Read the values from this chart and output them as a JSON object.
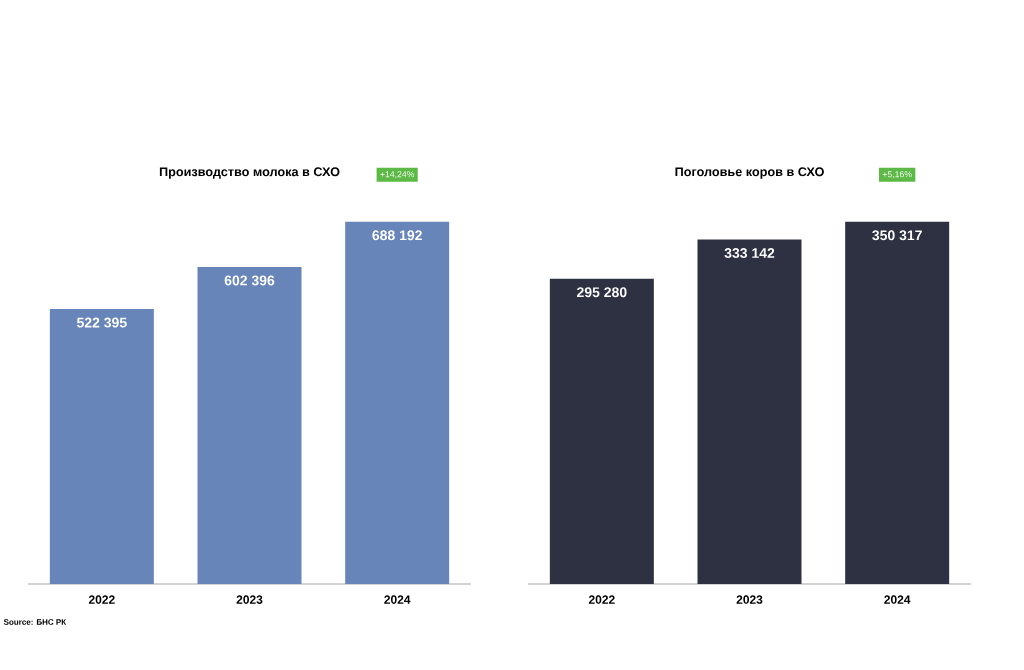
{
  "chart_data": [
    {
      "type": "bar",
      "title": "Производство молока в СХО",
      "categories": [
        "2022",
        "2023",
        "2024"
      ],
      "values": [
        522395,
        602396,
        688192
      ],
      "value_labels": [
        "522 395",
        "602 396",
        "688 192"
      ],
      "color": "#6785b8",
      "annotations": [
        "+14,24%",
        "Source: БНС РК"
      ]
    },
    {
      "type": "bar",
      "title": "Поголовье коров в СХО",
      "categories": [
        "2022",
        "2023",
        "2024"
      ],
      "values": [
        295280,
        333142,
        350317
      ],
      "value_labels": [
        "295 280",
        "333 142",
        "350 317"
      ],
      "color": "#2e3141",
      "annotations": [
        "+5,16%"
      ]
    }
  ]
}
